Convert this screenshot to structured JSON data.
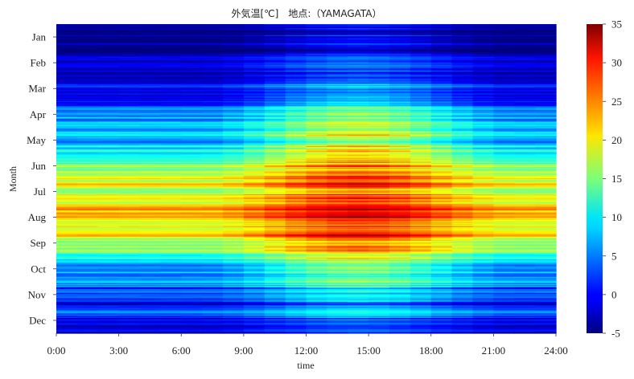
{
  "chart_data": {
    "type": "heatmap",
    "title": "外気温[℃]　地点:（YAMAGATA）",
    "xlabel": "time",
    "ylabel": "Month",
    "x_ticks": [
      "0:00",
      "3:00",
      "6:00",
      "9:00",
      "12:00",
      "15:00",
      "18:00",
      "21:00",
      "24:00"
    ],
    "x_range_hours": [
      0,
      24
    ],
    "y_categories": [
      "Jan",
      "Feb",
      "Mar",
      "Apr",
      "May",
      "Jun",
      "Jul",
      "Aug",
      "Sep",
      "Oct",
      "Nov",
      "Dec"
    ],
    "colormap": "jet",
    "colorbar": {
      "min": -5,
      "max": 35,
      "ticks": [
        -5,
        0,
        5,
        10,
        15,
        20,
        25,
        30,
        35
      ]
    },
    "monthly_daily_min_C": [
      -3,
      -3,
      0,
      4,
      9,
      15,
      19,
      21,
      16,
      8,
      3,
      -1
    ],
    "monthly_daily_max_C": [
      3,
      4,
      9,
      17,
      24,
      27,
      30,
      32,
      27,
      20,
      12,
      5
    ],
    "daily_max_hour": 14,
    "grid": false,
    "legend": "colorbar-right"
  }
}
